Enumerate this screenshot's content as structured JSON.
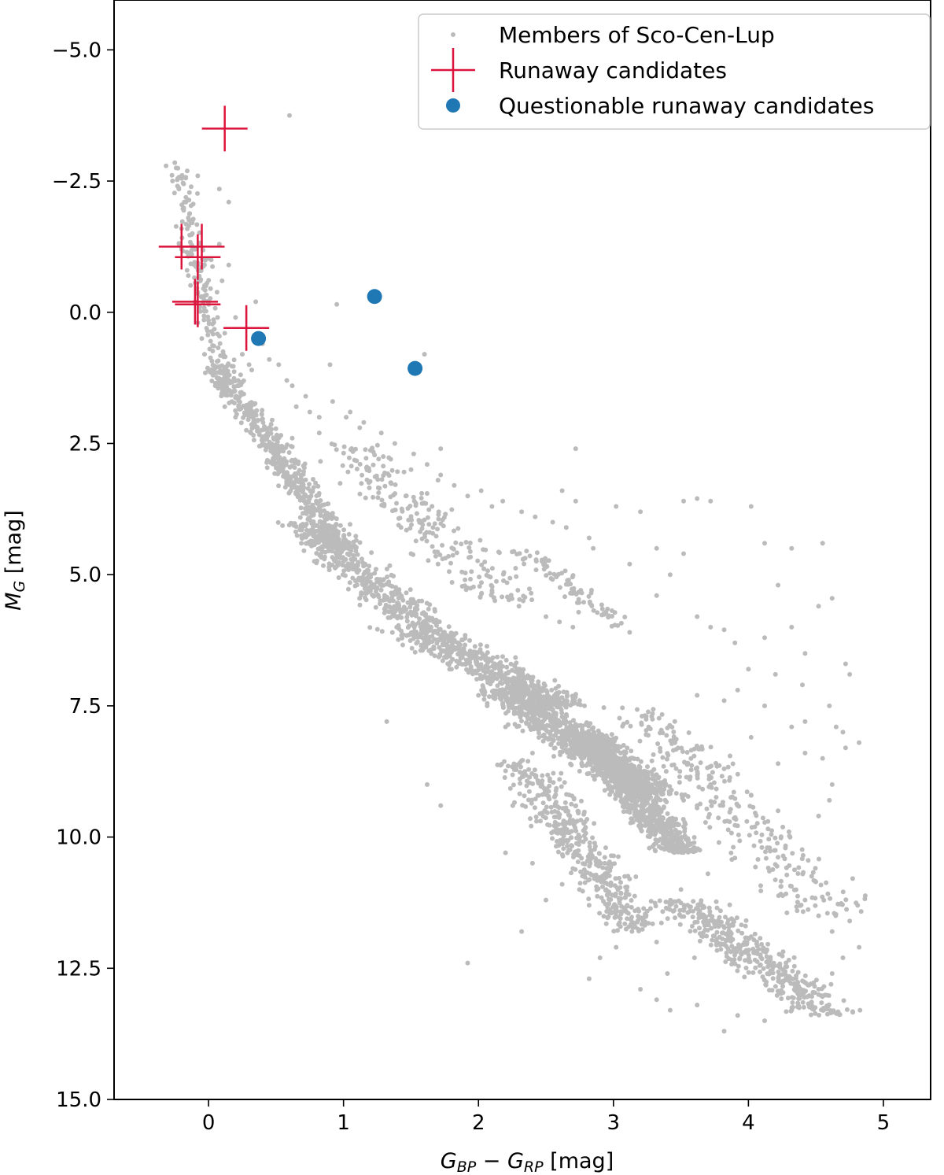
{
  "chart_data": {
    "type": "scatter",
    "xlabel": {
      "main1": "G",
      "sub1": "BP",
      "mid": " − ",
      "main2": "G",
      "sub2": "RP",
      "unit": " [mag]"
    },
    "ylabel": {
      "main": "M",
      "sub": "G",
      "unit": " [mag]"
    },
    "xlim": [
      -0.7,
      5.35
    ],
    "ylim": [
      15.0,
      -5.95
    ],
    "y_inverted": true,
    "grid": false,
    "legend_position": "top-right",
    "x_ticks": [
      {
        "value": 0,
        "label": "0"
      },
      {
        "value": 1,
        "label": "1"
      },
      {
        "value": 2,
        "label": "2"
      },
      {
        "value": 3,
        "label": "3"
      },
      {
        "value": 4,
        "label": "4"
      },
      {
        "value": 5,
        "label": "5"
      }
    ],
    "y_ticks": [
      {
        "value": -5.0,
        "label": "−5.0"
      },
      {
        "value": -2.5,
        "label": "−2.5"
      },
      {
        "value": 0.0,
        "label": "0.0"
      },
      {
        "value": 2.5,
        "label": "2.5"
      },
      {
        "value": 5.0,
        "label": "5.0"
      },
      {
        "value": 7.5,
        "label": "7.5"
      },
      {
        "value": 10.0,
        "label": "10.0"
      },
      {
        "value": 12.5,
        "label": "12.5"
      },
      {
        "value": 15.0,
        "label": "15.0"
      }
    ],
    "series": [
      {
        "name": "Members of Sco-Cen-Lup",
        "marker": "dot",
        "color": "#bbbbbb",
        "points": [
          [
            -0.25,
            -2.85
          ],
          [
            -0.2,
            -2.55
          ],
          [
            -0.22,
            -2.35
          ],
          [
            -0.18,
            -2.1
          ],
          [
            -0.15,
            -1.8
          ],
          [
            -0.12,
            -1.5
          ],
          [
            -0.1,
            -1.2
          ],
          [
            -0.08,
            -0.9
          ],
          [
            -0.06,
            -0.6
          ],
          [
            -0.05,
            -0.3
          ],
          [
            -0.08,
            0.2
          ],
          [
            -0.05,
            0.5
          ],
          [
            -0.03,
            0.8
          ],
          [
            0.0,
            1.1
          ],
          [
            0.05,
            1.4
          ],
          [
            -0.2,
            -1.2
          ],
          [
            -0.15,
            -0.7
          ],
          [
            -0.1,
            -0.2
          ],
          [
            0.02,
            -1.0
          ],
          [
            0.08,
            -1.3
          ],
          [
            0.1,
            -0.6
          ],
          [
            0.15,
            -0.9
          ],
          [
            0.2,
            0.1
          ],
          [
            0.12,
            0.4
          ],
          [
            0.25,
            0.8
          ],
          [
            0.3,
            1.0
          ],
          [
            0.35,
            -0.2
          ],
          [
            0.4,
            0.6
          ],
          [
            0.45,
            0.9
          ],
          [
            0.6,
            -3.75
          ],
          [
            -0.08,
            -2.6
          ],
          [
            0.08,
            -2.35
          ],
          [
            0.15,
            -2.1
          ],
          [
            0.95,
            -0.15
          ],
          [
            0.9,
            1.0
          ],
          [
            1.6,
            0.8
          ],
          [
            0.22,
            1.3
          ],
          [
            0.32,
            1.1
          ],
          [
            0.52,
            1.0
          ],
          [
            0.58,
            1.3
          ],
          [
            0.65,
            1.8
          ],
          [
            0.75,
            1.9
          ],
          [
            0.82,
            2.0
          ],
          [
            1.02,
            2.0
          ],
          [
            1.12,
            2.2
          ],
          [
            0.12,
            1.8
          ],
          [
            0.2,
            2.0
          ],
          [
            0.28,
            2.25
          ],
          [
            0.4,
            2.5
          ],
          [
            0.5,
            2.7
          ],
          [
            1.28,
            2.3
          ],
          [
            1.38,
            2.5
          ],
          [
            1.52,
            2.7
          ],
          [
            1.62,
            2.9
          ],
          [
            1.72,
            3.1
          ],
          [
            1.82,
            3.3
          ],
          [
            1.92,
            3.5
          ],
          [
            2.02,
            3.4
          ],
          [
            2.18,
            3.6
          ],
          [
            2.32,
            3.8
          ],
          [
            2.55,
            4.0
          ],
          [
            2.65,
            4.1
          ],
          [
            2.72,
            2.6
          ],
          [
            1.72,
            2.6
          ],
          [
            2.62,
            3.4
          ],
          [
            2.72,
            3.6
          ],
          [
            3.02,
            3.7
          ],
          [
            3.2,
            3.8
          ],
          [
            3.52,
            3.6
          ],
          [
            3.62,
            3.55
          ],
          [
            3.72,
            3.6
          ],
          [
            4.02,
            3.7
          ],
          [
            4.12,
            4.4
          ],
          [
            4.32,
            4.5
          ],
          [
            4.55,
            4.4
          ],
          [
            4.22,
            5.2
          ],
          [
            4.52,
            5.6
          ],
          [
            4.62,
            5.45
          ],
          [
            2.82,
            4.3
          ],
          [
            3.32,
            4.5
          ],
          [
            3.52,
            4.6
          ],
          [
            3.42,
            5.0
          ],
          [
            2.6,
            5.9
          ],
          [
            3.12,
            6.1
          ],
          [
            3.72,
            6.0
          ],
          [
            3.82,
            6.05
          ],
          [
            4.12,
            6.2
          ],
          [
            4.32,
            6.0
          ],
          [
            4.42,
            6.5
          ],
          [
            4.72,
            6.7
          ],
          [
            4.75,
            6.9
          ],
          [
            4.82,
            8.2
          ],
          [
            4.72,
            8.3
          ],
          [
            4.65,
            7.9
          ],
          [
            4.42,
            7.8
          ],
          [
            4.32,
            7.9
          ],
          [
            4.12,
            7.5
          ],
          [
            3.92,
            7.2
          ],
          [
            3.82,
            7.4
          ],
          [
            3.62,
            7.3
          ],
          [
            4.02,
            8.1
          ],
          [
            4.22,
            8.6
          ],
          [
            4.42,
            8.4
          ],
          [
            3.82,
            8.7
          ],
          [
            3.72,
            9.0
          ],
          [
            3.62,
            9.4
          ],
          [
            3.52,
            9.8
          ],
          [
            4.02,
            9.2
          ],
          [
            4.22,
            9.5
          ],
          [
            4.52,
            9.6
          ],
          [
            4.62,
            9.0
          ],
          [
            1.32,
            7.8
          ],
          [
            1.62,
            9.0
          ],
          [
            1.72,
            9.4
          ],
          [
            1.92,
            12.4
          ],
          [
            2.32,
            11.8
          ],
          [
            2.5,
            11.2
          ],
          [
            2.62,
            10.9
          ],
          [
            2.82,
            11.3
          ],
          [
            3.02,
            11.5
          ],
          [
            3.12,
            10.8
          ],
          [
            3.22,
            11.6
          ],
          [
            3.32,
            12.0
          ],
          [
            3.52,
            11.4
          ],
          [
            3.6,
            12.3
          ],
          [
            2.82,
            12.7
          ],
          [
            3.02,
            12.1
          ],
          [
            3.32,
            13.1
          ],
          [
            3.42,
            13.3
          ],
          [
            3.62,
            13.2
          ],
          [
            3.82,
            13.7
          ],
          [
            3.92,
            13.4
          ],
          [
            4.12,
            13.5
          ],
          [
            4.32,
            13.3
          ],
          [
            4.52,
            12.9
          ],
          [
            4.82,
            12.1
          ],
          [
            4.62,
            12.6
          ],
          [
            4.62,
            11.8
          ],
          [
            4.52,
            11.5
          ],
          [
            4.42,
            11.2
          ],
          [
            0.62,
            1.4
          ],
          [
            0.72,
            1.6
          ],
          [
            0.92,
            1.7
          ],
          [
            1.05,
            1.9
          ],
          [
            1.15,
            2.1
          ],
          [
            0.45,
            2.2
          ],
          [
            0.62,
            2.4
          ],
          [
            0.82,
            2.3
          ],
          [
            1.35,
            2.8
          ],
          [
            1.5,
            3.0
          ],
          [
            1.7,
            3.2
          ],
          [
            2.1,
            3.7
          ],
          [
            2.42,
            3.9
          ],
          [
            2.85,
            4.5
          ],
          [
            3.12,
            4.8
          ],
          [
            3.32,
            5.4
          ],
          [
            3.62,
            5.8
          ],
          [
            3.9,
            6.3
          ],
          [
            4.0,
            6.8
          ],
          [
            4.2,
            6.9
          ],
          [
            4.4,
            7.1
          ],
          [
            4.6,
            7.5
          ],
          [
            4.7,
            8.0
          ],
          [
            4.55,
            8.5
          ],
          [
            4.6,
            9.3
          ],
          [
            4.3,
            9.9
          ],
          [
            4.1,
            10.2
          ],
          [
            3.9,
            10.4
          ],
          [
            3.7,
            10.7
          ],
          [
            3.5,
            11.0
          ],
          [
            2.2,
            10.3
          ],
          [
            2.4,
            10.5
          ],
          [
            2.7,
            10.6
          ],
          [
            2.9,
            12.3
          ],
          [
            3.2,
            12.9
          ],
          [
            3.4,
            12.6
          ],
          [
            4.4,
            13.0
          ],
          [
            4.7,
            12.3
          ],
          [
            4.75,
            11.6
          ],
          [
            1.2,
            5.3
          ],
          [
            1.4,
            5.8
          ],
          [
            1.6,
            6.3
          ],
          [
            1.8,
            6.8
          ],
          [
            2.0,
            7.3
          ],
          [
            2.2,
            7.9
          ],
          [
            2.4,
            8.4
          ],
          [
            2.6,
            8.9
          ],
          [
            1.5,
            4.6
          ],
          [
            1.7,
            4.8
          ],
          [
            1.9,
            5.1
          ],
          [
            2.1,
            5.3
          ],
          [
            2.3,
            5.6
          ],
          [
            2.5,
            5.8
          ],
          [
            2.7,
            6.0
          ]
        ],
        "clusters": [
          {
            "x": [
              -0.25,
              0.15
            ],
            "y": [
              -2.8,
              1.6
            ],
            "count": 180
          },
          {
            "x": [
              0.05,
              0.5
            ],
            "y": [
              1.0,
              2.6
            ],
            "count": 200
          },
          {
            "x": [
              0.45,
              1.0
            ],
            "y": [
              2.5,
              4.5
            ],
            "count": 320
          },
          {
            "x": [
              0.7,
              1.6
            ],
            "y": [
              4.0,
              6.0
            ],
            "count": 450
          },
          {
            "x": [
              1.0,
              2.2
            ],
            "y": [
              2.5,
              5.5
            ],
            "count": 220
          },
          {
            "x": [
              1.5,
              2.6
            ],
            "y": [
              6.0,
              7.5
            ],
            "count": 550
          },
          {
            "x": [
              2.2,
              3.3
            ],
            "y": [
              7.2,
              9.2
            ],
            "count": 900
          },
          {
            "x": [
              2.8,
              3.5
            ],
            "y": [
              8.0,
              10.3
            ],
            "count": 900
          },
          {
            "x": [
              2.3,
              3.2
            ],
            "y": [
              8.5,
              11.8
            ],
            "count": 450
          },
          {
            "x": [
              3.2,
              4.6
            ],
            "y": [
              7.5,
              11.5
            ],
            "count": 280
          },
          {
            "x": [
              3.5,
              4.6
            ],
            "y": [
              11.2,
              13.4
            ],
            "count": 420
          },
          {
            "x": [
              2.3,
              3.0
            ],
            "y": [
              4.5,
              6.0
            ],
            "count": 90
          }
        ]
      },
      {
        "name": "Runaway candidates",
        "marker": "plus",
        "color": "#dc143c",
        "points": [
          [
            0.12,
            -3.5
          ],
          [
            -0.2,
            -1.25
          ],
          [
            -0.05,
            -1.25
          ],
          [
            -0.08,
            -1.05
          ],
          [
            -0.1,
            -0.2
          ],
          [
            -0.08,
            -0.15
          ],
          [
            0.28,
            0.3
          ]
        ]
      },
      {
        "name": "Questionable runaway candidates",
        "marker": "circle",
        "color": "#1f77b4",
        "points": [
          [
            0.37,
            0.5
          ],
          [
            1.23,
            -0.3
          ],
          [
            1.53,
            1.07
          ]
        ]
      }
    ]
  }
}
